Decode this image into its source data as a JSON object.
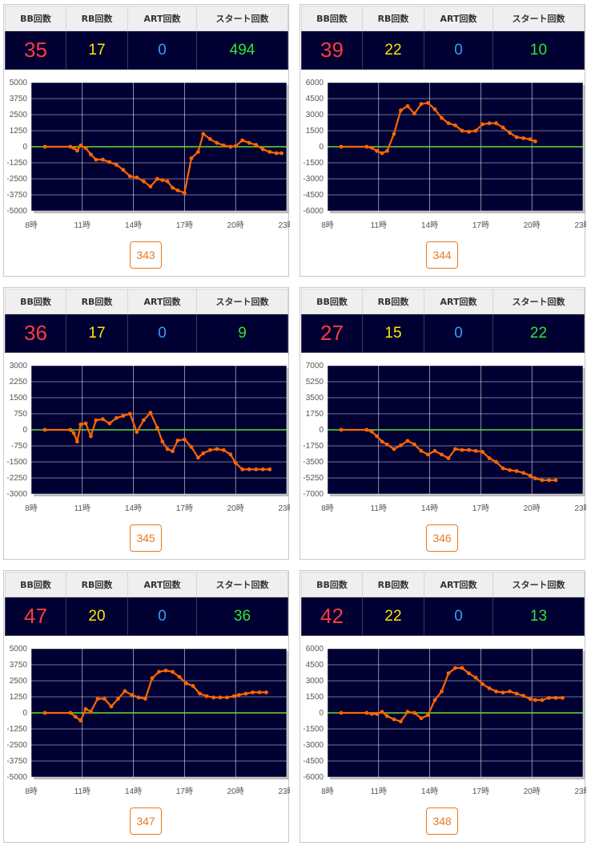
{
  "headers": {
    "bb": "BB回数",
    "rb": "RB回数",
    "art": "ART回数",
    "start": "スタート回数"
  },
  "colors": {
    "bb": "#ff3b3b",
    "rb": "#ffe600",
    "art": "#2ea0ff",
    "start": "#2ee62e",
    "line": "#ff6600",
    "zero": "#66dd33",
    "plot_bg": "#000033",
    "grid": "#ffffff"
  },
  "x_axis": {
    "labels": [
      "8時",
      "11時",
      "14時",
      "17時",
      "20時",
      "23時"
    ],
    "range": [
      8,
      23
    ]
  },
  "machines": [
    {
      "number": "343",
      "bb": "35",
      "rb": "17",
      "art": "0",
      "start": "494",
      "chart_data": {
        "type": "line",
        "ylim": [
          -5000,
          5000
        ],
        "yticks": [
          "5000",
          "3750",
          "2500",
          "1250",
          "0",
          "-1250",
          "-2500",
          "-3750",
          "-5000"
        ],
        "x": [
          8.8,
          10.3,
          10.5,
          10.7,
          10.9,
          11.2,
          11.5,
          11.8,
          12.2,
          12.6,
          13.0,
          13.4,
          13.8,
          14.2,
          14.6,
          15.0,
          15.4,
          15.7,
          16.0,
          16.3,
          16.6,
          17.0,
          17.4,
          17.8,
          18.1,
          18.5,
          18.9,
          19.3,
          19.7,
          20.0,
          20.4,
          20.8,
          21.2,
          21.6,
          22.0,
          22.4,
          22.7
        ],
        "values": [
          0,
          0,
          -100,
          -300,
          100,
          -100,
          -600,
          -1000,
          -1000,
          -1200,
          -1400,
          -1800,
          -2300,
          -2400,
          -2700,
          -3100,
          -2500,
          -2600,
          -2700,
          -3200,
          -3400,
          -3600,
          -900,
          -400,
          1000,
          600,
          300,
          100,
          0,
          50,
          500,
          300,
          150,
          -200,
          -400,
          -500,
          -500
        ]
      }
    },
    {
      "number": "344",
      "bb": "39",
      "rb": "22",
      "art": "0",
      "start": "10",
      "chart_data": {
        "type": "line",
        "ylim": [
          -6000,
          6000
        ],
        "yticks": [
          "6000",
          "4500",
          "3000",
          "1500",
          "0",
          "-1500",
          "-3000",
          "-4500",
          "-6000"
        ],
        "x": [
          8.8,
          10.3,
          10.6,
          10.9,
          11.2,
          11.5,
          11.9,
          12.3,
          12.7,
          13.1,
          13.5,
          13.9,
          14.3,
          14.7,
          15.1,
          15.5,
          15.9,
          16.3,
          16.7,
          17.1,
          17.5,
          17.9,
          18.3,
          18.7,
          19.1,
          19.5,
          19.9,
          20.2
        ],
        "values": [
          0,
          0,
          -100,
          -400,
          -600,
          -400,
          1200,
          3400,
          3800,
          3100,
          4000,
          4100,
          3500,
          2700,
          2200,
          2000,
          1500,
          1400,
          1500,
          2100,
          2200,
          2200,
          1800,
          1300,
          900,
          800,
          700,
          500
        ]
      }
    },
    {
      "number": "345",
      "bb": "36",
      "rb": "17",
      "art": "0",
      "start": "9",
      "chart_data": {
        "type": "line",
        "ylim": [
          -3000,
          3000
        ],
        "yticks": [
          "3000",
          "2250",
          "1500",
          "750",
          "0",
          "-750",
          "-1500",
          "-2250",
          "-3000"
        ],
        "x": [
          8.8,
          10.3,
          10.5,
          10.7,
          10.9,
          11.2,
          11.5,
          11.8,
          12.2,
          12.6,
          13.0,
          13.4,
          13.8,
          14.2,
          14.6,
          15.0,
          15.4,
          15.7,
          16.0,
          16.3,
          16.6,
          17.0,
          17.4,
          17.8,
          18.1,
          18.5,
          18.9,
          19.3,
          19.7,
          20.0,
          20.4,
          20.8,
          21.2,
          21.6,
          22.0
        ],
        "values": [
          0,
          0,
          -150,
          -550,
          250,
          300,
          -300,
          450,
          500,
          300,
          550,
          650,
          750,
          -100,
          450,
          800,
          100,
          -550,
          -900,
          -1000,
          -500,
          -450,
          -800,
          -1300,
          -1100,
          -950,
          -900,
          -950,
          -1150,
          -1550,
          -1850,
          -1850,
          -1850,
          -1850,
          -1850
        ]
      }
    },
    {
      "number": "346",
      "bb": "27",
      "rb": "15",
      "art": "0",
      "start": "22",
      "chart_data": {
        "type": "line",
        "ylim": [
          -7000,
          7000
        ],
        "yticks": [
          "7000",
          "5250",
          "3500",
          "1750",
          "0",
          "-1750",
          "-3500",
          "-5250",
          "-7000"
        ],
        "x": [
          8.8,
          10.3,
          10.6,
          10.9,
          11.2,
          11.5,
          11.9,
          12.3,
          12.7,
          13.1,
          13.5,
          13.9,
          14.3,
          14.7,
          15.1,
          15.5,
          15.9,
          16.3,
          16.7,
          17.1,
          17.5,
          17.9,
          18.3,
          18.7,
          19.1,
          19.5,
          19.9,
          20.2,
          20.6,
          21.0,
          21.4
        ],
        "values": [
          0,
          0,
          -200,
          -700,
          -1300,
          -1600,
          -2100,
          -1700,
          -1200,
          -1600,
          -2300,
          -2700,
          -2300,
          -2700,
          -3100,
          -2100,
          -2200,
          -2200,
          -2300,
          -2400,
          -3100,
          -3500,
          -4200,
          -4400,
          -4500,
          -4700,
          -5000,
          -5300,
          -5500,
          -5500,
          -5500
        ]
      }
    },
    {
      "number": "347",
      "bb": "47",
      "rb": "20",
      "art": "0",
      "start": "36",
      "chart_data": {
        "type": "line",
        "ylim": [
          -5000,
          5000
        ],
        "yticks": [
          "5000",
          "3750",
          "2500",
          "1250",
          "0",
          "-1250",
          "-2500",
          "-3750",
          "-5000"
        ],
        "x": [
          8.8,
          10.3,
          10.6,
          10.9,
          11.2,
          11.5,
          11.9,
          12.3,
          12.7,
          13.1,
          13.5,
          13.9,
          14.3,
          14.7,
          15.1,
          15.5,
          15.9,
          16.3,
          16.7,
          17.1,
          17.5,
          17.9,
          18.3,
          18.7,
          19.1,
          19.5,
          19.9,
          20.2,
          20.6,
          21.0,
          21.4,
          21.8
        ],
        "values": [
          0,
          0,
          -300,
          -600,
          300,
          100,
          1100,
          1100,
          500,
          1100,
          1700,
          1400,
          1200,
          1100,
          2700,
          3200,
          3300,
          3200,
          2800,
          2300,
          2100,
          1500,
          1300,
          1200,
          1200,
          1200,
          1300,
          1400,
          1500,
          1600,
          1600,
          1600
        ]
      }
    },
    {
      "number": "348",
      "bb": "42",
      "rb": "22",
      "art": "0",
      "start": "13",
      "chart_data": {
        "type": "line",
        "ylim": [
          -6000,
          6000
        ],
        "yticks": [
          "6000",
          "4500",
          "3000",
          "1500",
          "0",
          "-1500",
          "-3000",
          "-4500",
          "-6000"
        ],
        "x": [
          8.8,
          10.3,
          10.6,
          10.9,
          11.2,
          11.5,
          11.9,
          12.3,
          12.7,
          13.1,
          13.5,
          13.9,
          14.3,
          14.7,
          15.1,
          15.5,
          15.9,
          16.3,
          16.7,
          17.1,
          17.5,
          17.9,
          18.3,
          18.7,
          19.1,
          19.5,
          19.9,
          20.2,
          20.6,
          21.0,
          21.4,
          21.8
        ],
        "values": [
          0,
          0,
          -100,
          -100,
          100,
          -300,
          -600,
          -800,
          100,
          0,
          -500,
          -200,
          1200,
          2000,
          3700,
          4200,
          4200,
          3700,
          3300,
          2700,
          2300,
          2000,
          1900,
          2000,
          1800,
          1600,
          1300,
          1200,
          1200,
          1400,
          1400,
          1400
        ]
      }
    }
  ]
}
